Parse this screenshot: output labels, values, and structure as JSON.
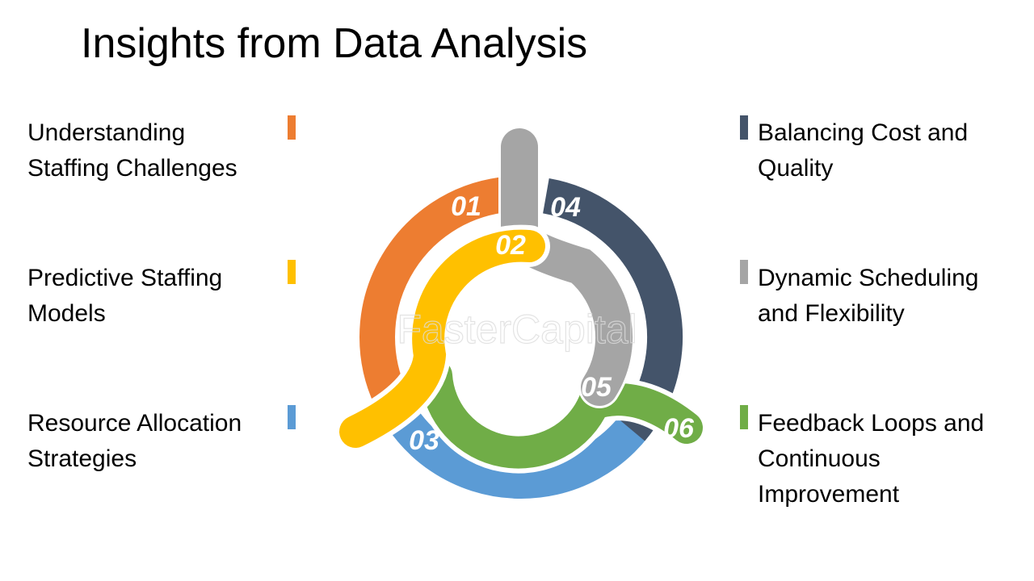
{
  "title": "Insights from Data Analysis",
  "watermark": "FasterCapital",
  "items": [
    {
      "num": "01",
      "label": "Understanding Staffing Challenges",
      "lines": [
        "Understanding",
        "Staffing Challenges"
      ],
      "color": "#ED7D31"
    },
    {
      "num": "02",
      "label": "Predictive Staffing Models",
      "lines": [
        "Predictive Staffing",
        "Models"
      ],
      "color": "#FFC000"
    },
    {
      "num": "03",
      "label": "Resource Allocation Strategies",
      "lines": [
        "Resource Allocation",
        "Strategies"
      ],
      "color": "#5B9BD5"
    },
    {
      "num": "04",
      "label": "Balancing Cost and Quality",
      "lines": [
        "Balancing Cost and",
        "Quality"
      ],
      "color": "#44546A"
    },
    {
      "num": "05",
      "label": "Dynamic Scheduling and Flexibility",
      "lines": [
        "Dynamic Scheduling",
        "and Flexibility"
      ],
      "color": "#A5A5A5"
    },
    {
      "num": "06",
      "label": "Feedback Loops and Continuous Improvement",
      "lines": [
        "Feedback Loops and",
        "Continuous",
        "Improvement"
      ],
      "color": "#70AD47"
    }
  ]
}
